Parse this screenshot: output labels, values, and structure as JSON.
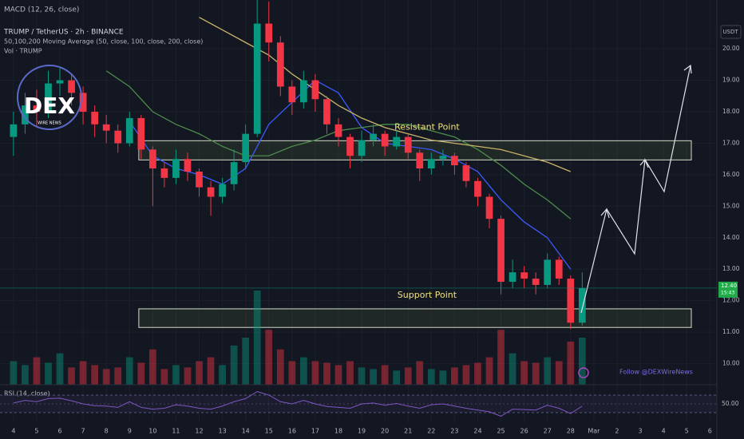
{
  "chart_data": {
    "type": "candlestick",
    "title": "TRUMP / TetherUS · 2h · BINANCE",
    "macd_label": "MACD (12, 26, close)",
    "ma_label": "50,100,200 Moving Average (50, close, 100, close, 200, close)",
    "volume_label": "Vol · TRUMP",
    "currency": "USDT",
    "last_price": {
      "value": 12.4,
      "label": "12.40"
    },
    "countdown": "15:43",
    "watermark": {
      "logo": "DEX",
      "tagline": "WIRE NEWS",
      "follow": "Follow @DEXWireNews"
    },
    "up_color": "#089981",
    "down_color": "#f23645",
    "grid": true,
    "xlim": [
      3.42,
      34.3
    ],
    "ylim": [
      9.33,
      21.55
    ],
    "xticks": [
      4,
      5,
      6,
      7,
      8,
      9,
      10,
      11,
      12,
      13,
      14,
      15,
      16,
      17,
      18,
      19,
      20,
      21,
      22,
      23,
      24,
      25,
      26,
      27,
      28,
      {
        "value": 29,
        "label": "Mar"
      },
      {
        "value": 30,
        "label": "2"
      },
      {
        "value": 31,
        "label": "3"
      },
      {
        "value": 32,
        "label": "4"
      },
      {
        "value": 33,
        "label": "5"
      },
      {
        "value": 34,
        "label": "6"
      }
    ],
    "yticks": [
      {
        "value": 10,
        "label": "10.00"
      },
      {
        "value": 11,
        "label": "11.00"
      },
      {
        "value": 12,
        "label": "12.00"
      },
      {
        "value": 13,
        "label": "13.00"
      },
      {
        "value": 14,
        "label": "14.00"
      },
      {
        "value": 15,
        "label": "15.00"
      },
      {
        "value": 16,
        "label": "16.00"
      },
      {
        "value": 17,
        "label": "17.00"
      },
      {
        "value": 18,
        "label": "18.00"
      },
      {
        "value": 19,
        "label": "19.00"
      },
      {
        "value": 20,
        "label": "20.00"
      }
    ],
    "x": [
      4,
      4.5,
      5,
      5.5,
      6,
      6.5,
      7,
      7.5,
      8,
      8.5,
      9,
      9.5,
      10,
      10.5,
      11,
      11.5,
      12,
      12.5,
      13,
      13.5,
      14,
      14.5,
      15,
      15.5,
      16,
      16.5,
      17,
      17.5,
      18,
      18.5,
      19,
      19.5,
      20,
      20.5,
      21,
      21.5,
      22,
      22.5,
      23,
      23.5,
      24,
      24.5,
      25,
      25.5,
      26,
      26.5,
      27,
      27.5,
      28,
      28.5
    ],
    "open": [
      17.2,
      17.6,
      18.2,
      18.0,
      18.9,
      19.0,
      18.6,
      18.0,
      17.6,
      17.4,
      17.0,
      17.8,
      16.8,
      16.2,
      15.9,
      16.5,
      16.1,
      15.6,
      15.3,
      15.7,
      16.4,
      17.3,
      20.8,
      20.2,
      18.8,
      18.3,
      19.0,
      18.4,
      17.6,
      17.2,
      16.6,
      17.1,
      17.3,
      16.9,
      17.2,
      16.7,
      16.2,
      16.5,
      16.6,
      16.3,
      15.8,
      15.3,
      14.6,
      12.6,
      12.9,
      12.7,
      12.5,
      13.3,
      12.7,
      11.3
    ],
    "high": [
      18.0,
      18.6,
      18.7,
      19.3,
      19.4,
      19.2,
      18.8,
      18.2,
      17.9,
      17.6,
      18.0,
      17.9,
      16.9,
      16.4,
      16.8,
      16.7,
      16.2,
      15.8,
      15.9,
      16.8,
      17.6,
      21.6,
      21.5,
      20.4,
      19.0,
      19.3,
      19.2,
      18.5,
      17.8,
      17.3,
      17.4,
      17.6,
      17.4,
      17.4,
      17.3,
      16.8,
      16.7,
      16.8,
      16.7,
      16.4,
      15.9,
      15.4,
      14.7,
      13.3,
      13.1,
      12.9,
      13.5,
      13.4,
      12.8,
      12.9
    ],
    "low": [
      16.6,
      17.3,
      17.5,
      17.8,
      18.5,
      18.2,
      17.6,
      17.2,
      17.0,
      16.7,
      16.9,
      16.5,
      15.0,
      15.6,
      15.7,
      15.8,
      15.3,
      14.7,
      15.1,
      15.5,
      16.2,
      17.2,
      19.6,
      18.5,
      17.9,
      18.1,
      18.0,
      17.3,
      16.9,
      16.2,
      16.4,
      16.9,
      16.6,
      16.8,
      16.5,
      15.8,
      16.0,
      16.3,
      16.0,
      15.6,
      15.0,
      14.3,
      12.2,
      12.4,
      12.4,
      12.2,
      12.4,
      12.5,
      11.1,
      11.2
    ],
    "close": [
      17.6,
      18.2,
      18.0,
      18.9,
      19.0,
      18.6,
      18.0,
      17.6,
      17.4,
      17.0,
      17.8,
      16.8,
      16.2,
      15.9,
      16.5,
      16.1,
      15.6,
      15.3,
      15.7,
      16.4,
      17.3,
      20.8,
      20.2,
      18.8,
      18.3,
      19.0,
      18.4,
      17.6,
      17.2,
      16.6,
      17.1,
      17.3,
      16.9,
      17.2,
      16.7,
      16.2,
      16.5,
      16.6,
      16.3,
      15.8,
      15.3,
      14.6,
      12.6,
      12.9,
      12.7,
      12.5,
      13.3,
      12.7,
      11.3,
      12.4
    ],
    "volume": [
      30,
      25,
      35,
      28,
      40,
      22,
      30,
      25,
      20,
      22,
      35,
      28,
      45,
      20,
      25,
      22,
      30,
      35,
      25,
      50,
      60,
      120,
      70,
      45,
      30,
      35,
      30,
      28,
      25,
      30,
      22,
      20,
      25,
      18,
      22,
      30,
      20,
      18,
      22,
      25,
      28,
      35,
      70,
      40,
      30,
      28,
      35,
      30,
      55,
      60
    ],
    "moving_averages": [
      {
        "color": "#3d5afe",
        "x": [
          9,
          10,
          11,
          12,
          13,
          14,
          15,
          16,
          17,
          18,
          19,
          20,
          21,
          22,
          23,
          24,
          25,
          26,
          27,
          28
        ],
        "values": [
          17.7,
          16.6,
          16.2,
          16.0,
          15.7,
          16.2,
          17.6,
          18.3,
          19.0,
          18.6,
          17.5,
          17.0,
          16.9,
          16.8,
          16.5,
          16.1,
          15.2,
          14.5,
          14.0,
          13.0
        ]
      },
      {
        "color": "#4c8c4a",
        "x": [
          8,
          9,
          10,
          11,
          12,
          13,
          14,
          15,
          16,
          17,
          18,
          19,
          20,
          21,
          22,
          23,
          24,
          25,
          26,
          27,
          28
        ],
        "values": [
          19.3,
          18.8,
          18.0,
          17.6,
          17.3,
          16.9,
          16.6,
          16.6,
          16.9,
          17.1,
          17.4,
          17.5,
          17.6,
          17.6,
          17.4,
          17.2,
          16.8,
          16.3,
          15.7,
          15.2,
          14.6
        ]
      },
      {
        "color": "#c9b46a",
        "x": [
          12,
          13,
          14,
          15,
          16,
          17,
          18,
          19,
          20,
          21,
          22,
          23,
          24,
          25,
          26,
          27,
          28
        ],
        "values": [
          21.0,
          20.6,
          20.2,
          19.8,
          19.2,
          18.7,
          18.2,
          17.8,
          17.5,
          17.3,
          17.1,
          17.0,
          16.9,
          16.8,
          16.6,
          16.4,
          16.1
        ]
      }
    ],
    "zones": [
      {
        "label": "Resistant Point",
        "range": [
          16.47,
          17.08
        ],
        "xrange": [
          9.4,
          33.2
        ]
      },
      {
        "label": "Support Point",
        "range": [
          11.15,
          11.74
        ],
        "xrange": [
          9.4,
          33.2
        ]
      }
    ],
    "rsi": {
      "label": "RSI (14, close)",
      "ylim": [
        10,
        90
      ],
      "bands": [
        30,
        70
      ],
      "level": {
        "value": 50,
        "label": "50.00"
      },
      "values": [
        52,
        58,
        55,
        62,
        63,
        57,
        50,
        46,
        45,
        42,
        55,
        42,
        38,
        40,
        48,
        45,
        40,
        38,
        45,
        55,
        62,
        78,
        70,
        55,
        50,
        58,
        50,
        44,
        42,
        40,
        50,
        52,
        47,
        51,
        45,
        40,
        48,
        50,
        45,
        40,
        36,
        32,
        22,
        38,
        37,
        36,
        47,
        40,
        28,
        45
      ]
    }
  }
}
